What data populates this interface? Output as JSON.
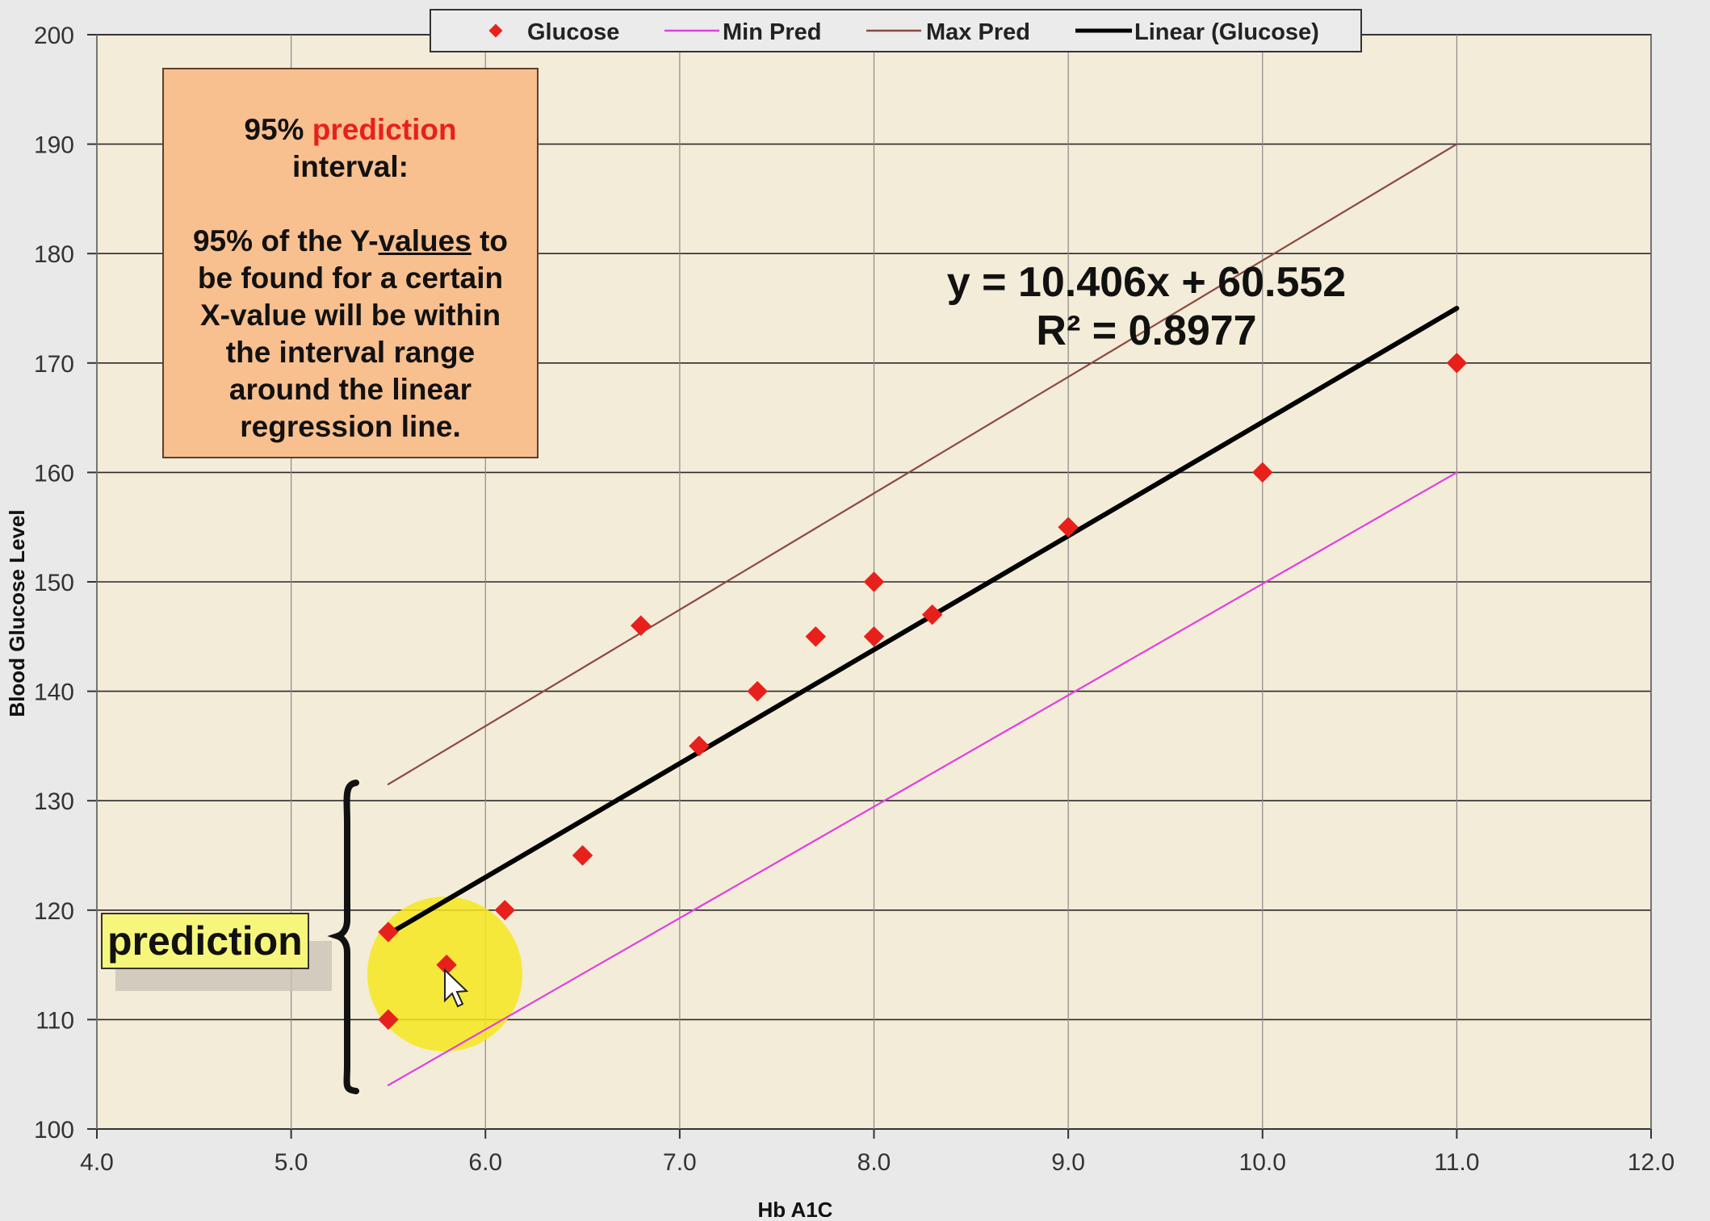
{
  "chart_data": {
    "type": "scatter",
    "xlabel": "Hb A1C",
    "ylabel": "Blood Glucose Level",
    "xlim": [
      4.0,
      12.0
    ],
    "ylim": [
      100,
      200
    ],
    "xticks": [
      "4.0",
      "5.0",
      "6.0",
      "7.0",
      "8.0",
      "9.0",
      "10.0",
      "11.0",
      "12.0"
    ],
    "yticks": [
      "100",
      "110",
      "120",
      "130",
      "140",
      "150",
      "160",
      "170",
      "180",
      "190",
      "200"
    ],
    "grid": true,
    "legend_position": "top-center",
    "legend": {
      "glucose": "Glucose",
      "min_pred": "Min Pred",
      "max_pred": "Max Pred",
      "linear": "Linear (Glucose)"
    },
    "series": [
      {
        "name": "Glucose",
        "kind": "points",
        "color": "#e8201c",
        "x": [
          5.5,
          5.5,
          5.8,
          6.1,
          6.5,
          6.8,
          7.1,
          7.4,
          7.7,
          8.0,
          8.0,
          8.3,
          9.0,
          10.0,
          11.0
        ],
        "y": [
          110,
          118,
          115,
          120,
          125,
          146,
          135,
          140,
          145,
          145,
          150,
          147,
          155,
          160,
          170
        ]
      },
      {
        "name": "Min Pred",
        "kind": "line",
        "color": "#e040e0",
        "x": [
          5.5,
          11.0
        ],
        "y": [
          104,
          160
        ]
      },
      {
        "name": "Max Pred",
        "kind": "line",
        "color": "#8a4a42",
        "x": [
          5.5,
          11.0
        ],
        "y": [
          131.5,
          190
        ]
      },
      {
        "name": "Linear (Glucose)",
        "kind": "line",
        "color": "#000000",
        "x": [
          5.5,
          11.0
        ],
        "y": [
          117.8,
          175.0
        ]
      }
    ],
    "annotations": {
      "equation": "y = 10.406x + 60.552",
      "r_squared": "R² = 0.8977"
    }
  },
  "info_box": {
    "percent": "95%",
    "highlight": "prediction",
    "line2": "interval:",
    "line3a": "95% of the Y-",
    "line3b": "values",
    "line3c": " to",
    "line4": "be found for a certain",
    "line5": "X-value will be within",
    "line6": "the interval range",
    "line7": "around the linear",
    "line8": "regression line."
  },
  "prediction_label": "prediction",
  "colors": {
    "plot_background": "#f3ecd8",
    "point": "#e8201c",
    "info_box": "#f8bf8f",
    "highlight_circle": "#f5e81e"
  }
}
